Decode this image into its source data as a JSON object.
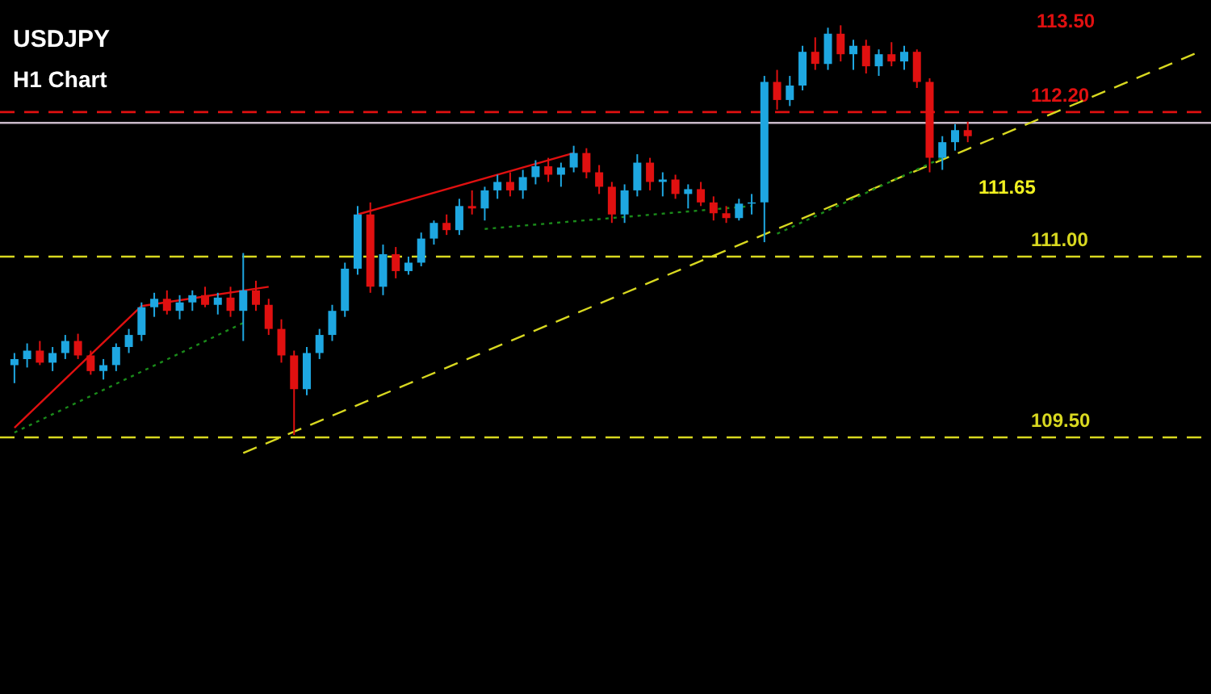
{
  "chart_data": {
    "type": "candlestick",
    "title": "USDJPY",
    "subtitle": "H1 Chart",
    "categories": [
      null,
      null,
      null,
      null,
      null,
      null,
      null,
      null,
      null,
      null,
      null,
      null,
      null,
      null,
      null,
      null,
      null,
      null,
      null,
      null,
      null,
      null,
      null,
      null,
      null,
      null,
      null,
      null,
      null,
      null,
      null,
      null,
      null,
      null,
      null,
      null,
      null,
      null,
      null,
      null,
      null,
      null,
      null,
      null,
      null,
      null,
      null,
      null,
      null,
      null,
      null,
      null,
      null,
      null,
      null,
      null,
      null,
      null,
      null,
      null,
      null,
      null,
      null,
      null,
      null,
      null,
      null,
      null,
      null,
      null,
      null,
      null,
      null,
      null,
      null,
      null,
      null,
      null,
      null,
      null,
      null,
      null,
      null,
      null,
      null,
      null,
      null,
      null,
      null,
      null,
      null,
      null,
      null,
      null
    ],
    "ohlc": [
      [
        110.1,
        110.2,
        109.95,
        110.15
      ],
      [
        110.15,
        110.28,
        110.08,
        110.22
      ],
      [
        110.22,
        110.3,
        110.1,
        110.12
      ],
      [
        110.12,
        110.25,
        110.05,
        110.2
      ],
      [
        110.2,
        110.35,
        110.15,
        110.3
      ],
      [
        110.3,
        110.36,
        110.15,
        110.18
      ],
      [
        110.18,
        110.22,
        110.02,
        110.05
      ],
      [
        110.05,
        110.15,
        109.98,
        110.1
      ],
      [
        110.1,
        110.28,
        110.05,
        110.25
      ],
      [
        110.25,
        110.4,
        110.2,
        110.35
      ],
      [
        110.35,
        110.62,
        110.3,
        110.58
      ],
      [
        110.58,
        110.7,
        110.5,
        110.65
      ],
      [
        110.65,
        110.72,
        110.52,
        110.55
      ],
      [
        110.55,
        110.68,
        110.48,
        110.62
      ],
      [
        110.62,
        110.72,
        110.55,
        110.68
      ],
      [
        110.68,
        110.75,
        110.58,
        110.6
      ],
      [
        110.6,
        110.7,
        110.52,
        110.66
      ],
      [
        110.66,
        110.75,
        110.5,
        110.55
      ],
      [
        110.55,
        111.03,
        110.3,
        110.72
      ],
      [
        110.72,
        110.8,
        110.55,
        110.6
      ],
      [
        110.6,
        110.65,
        110.35,
        110.4
      ],
      [
        110.4,
        110.48,
        110.12,
        110.18
      ],
      [
        110.18,
        110.22,
        109.52,
        109.9
      ],
      [
        109.9,
        110.25,
        109.85,
        110.2
      ],
      [
        110.2,
        110.4,
        110.15,
        110.35
      ],
      [
        110.35,
        110.6,
        110.3,
        110.55
      ],
      [
        110.55,
        110.95,
        110.5,
        110.9
      ],
      [
        110.9,
        111.42,
        110.85,
        111.35
      ],
      [
        111.35,
        111.45,
        110.7,
        110.75
      ],
      [
        110.75,
        111.1,
        110.68,
        111.02
      ],
      [
        111.02,
        111.08,
        110.82,
        110.88
      ],
      [
        110.88,
        111.0,
        110.85,
        110.95
      ],
      [
        110.95,
        111.2,
        110.92,
        111.15
      ],
      [
        111.15,
        111.3,
        111.1,
        111.28
      ],
      [
        111.28,
        111.35,
        111.18,
        111.22
      ],
      [
        111.22,
        111.48,
        111.18,
        111.42
      ],
      [
        111.42,
        111.55,
        111.35,
        111.4
      ],
      [
        111.4,
        111.58,
        111.3,
        111.55
      ],
      [
        111.55,
        111.68,
        111.48,
        111.62
      ],
      [
        111.62,
        111.7,
        111.5,
        111.55
      ],
      [
        111.55,
        111.72,
        111.48,
        111.66
      ],
      [
        111.66,
        111.8,
        111.6,
        111.75
      ],
      [
        111.75,
        111.82,
        111.62,
        111.68
      ],
      [
        111.68,
        111.78,
        111.58,
        111.74
      ],
      [
        111.74,
        111.92,
        111.7,
        111.86
      ],
      [
        111.86,
        111.9,
        111.65,
        111.7
      ],
      [
        111.7,
        111.76,
        111.52,
        111.58
      ],
      [
        111.58,
        111.62,
        111.28,
        111.35
      ],
      [
        111.35,
        111.6,
        111.28,
        111.55
      ],
      [
        111.55,
        111.85,
        111.5,
        111.78
      ],
      [
        111.78,
        111.82,
        111.55,
        111.62
      ],
      [
        111.62,
        111.7,
        111.5,
        111.64
      ],
      [
        111.64,
        111.68,
        111.48,
        111.52
      ],
      [
        111.52,
        111.6,
        111.4,
        111.56
      ],
      [
        111.56,
        111.62,
        111.42,
        111.45
      ],
      [
        111.45,
        111.5,
        111.3,
        111.36
      ],
      [
        111.36,
        111.42,
        111.28,
        111.32
      ],
      [
        111.32,
        111.48,
        111.3,
        111.44
      ],
      [
        111.44,
        111.52,
        111.35,
        111.45
      ],
      [
        111.45,
        112.5,
        111.12,
        112.45
      ],
      [
        112.45,
        112.55,
        112.22,
        112.3
      ],
      [
        112.3,
        112.5,
        112.25,
        112.42
      ],
      [
        112.42,
        112.75,
        112.38,
        112.7
      ],
      [
        112.7,
        112.82,
        112.55,
        112.6
      ],
      [
        112.6,
        112.9,
        112.55,
        112.85
      ],
      [
        112.85,
        112.92,
        112.62,
        112.68
      ],
      [
        112.68,
        112.8,
        112.55,
        112.75
      ],
      [
        112.75,
        112.8,
        112.52,
        112.58
      ],
      [
        112.58,
        112.72,
        112.5,
        112.68
      ],
      [
        112.68,
        112.78,
        112.58,
        112.62
      ],
      [
        112.62,
        112.75,
        112.55,
        112.7
      ],
      [
        112.7,
        112.72,
        112.4,
        112.45
      ],
      [
        112.45,
        112.48,
        111.7,
        111.82
      ],
      [
        111.82,
        112.0,
        111.72,
        111.95
      ],
      [
        111.95,
        112.1,
        111.88,
        112.05
      ],
      [
        112.05,
        112.12,
        111.95,
        112.0
      ],
      null,
      null,
      null,
      null,
      null,
      null,
      null,
      null,
      null,
      null,
      null,
      null,
      null,
      null,
      null,
      null,
      null,
      null
    ],
    "colors": [
      "#1ea7e1",
      "#1ea7e1",
      "#e01010",
      "#1ea7e1",
      "#1ea7e1",
      "#e01010",
      "#e01010",
      "#1ea7e1",
      "#1ea7e1",
      "#1ea7e1",
      "#1ea7e1",
      "#1ea7e1",
      "#e01010",
      "#1ea7e1",
      "#1ea7e1",
      "#e01010",
      "#1ea7e1",
      "#e01010",
      "#1ea7e1",
      "#e01010",
      "#e01010",
      "#e01010",
      "#e01010",
      "#1ea7e1",
      "#1ea7e1",
      "#1ea7e1",
      "#1ea7e1",
      "#1ea7e1",
      "#e01010",
      "#1ea7e1",
      "#e01010",
      "#1ea7e1",
      "#1ea7e1",
      "#1ea7e1",
      "#e01010",
      "#1ea7e1",
      "#e01010",
      "#1ea7e1",
      "#1ea7e1",
      "#e01010",
      "#1ea7e1",
      "#1ea7e1",
      "#e01010",
      "#1ea7e1",
      "#1ea7e1",
      "#e01010",
      "#e01010",
      "#e01010",
      "#1ea7e1",
      "#1ea7e1",
      "#e01010",
      "#1ea7e1",
      "#e01010",
      "#1ea7e1",
      "#e01010",
      "#e01010",
      "#e01010",
      "#1ea7e1",
      "#1ea7e1",
      "#1ea7e1",
      "#e01010",
      "#1ea7e1",
      "#1ea7e1",
      "#e01010",
      "#1ea7e1",
      "#e01010",
      "#1ea7e1",
      "#e01010",
      "#1ea7e1",
      "#e01010",
      "#1ea7e1",
      "#e01010",
      "#e01010",
      "#1ea7e1",
      "#1ea7e1",
      "#e01010",
      null,
      null,
      null,
      null,
      null,
      null,
      null,
      null,
      null,
      null,
      null,
      null,
      null,
      null,
      null,
      null,
      null,
      null
    ],
    "series": [
      {
        "type": "line",
        "color": "#d8d820",
        "line_style": "dashed",
        "values": [
          null,
          null,
          null,
          null,
          null,
          null,
          null,
          null,
          null,
          null,
          null,
          null,
          null,
          null,
          null,
          null,
          null,
          null,
          109.37,
          null,
          null,
          null,
          null,
          null,
          null,
          null,
          null,
          null,
          null,
          null,
          null,
          null,
          null,
          null,
          null,
          null,
          null,
          null,
          null,
          null,
          null,
          null,
          null,
          null,
          null,
          null,
          null,
          null,
          null,
          null,
          null,
          null,
          null,
          null,
          null,
          null,
          null,
          null,
          null,
          null,
          null,
          null,
          null,
          null,
          null,
          null,
          null,
          null,
          null,
          null,
          null,
          null,
          null,
          null,
          null,
          null,
          null,
          null,
          null,
          null,
          null,
          null,
          null,
          null,
          null,
          null,
          null,
          null,
          null,
          null,
          null,
          null,
          null,
          112.69
        ]
      },
      {
        "type": "line",
        "color": "#e01010",
        "line_style": "solid",
        "values": [
          109.58,
          null,
          null,
          null,
          null,
          null,
          null,
          null,
          null,
          null,
          110.59,
          null,
          null,
          null,
          null,
          null,
          null,
          null,
          null,
          null,
          110.75,
          null,
          null,
          null,
          null,
          null,
          null,
          null,
          null,
          null,
          null,
          null,
          null,
          null,
          null,
          null,
          null,
          null,
          null,
          null,
          null,
          null,
          null,
          null,
          null,
          null,
          null,
          null,
          null,
          null,
          null,
          null,
          null,
          null,
          null,
          null,
          null,
          null,
          null,
          null,
          null,
          null,
          null,
          null,
          null,
          null,
          null,
          null,
          null,
          null,
          null,
          null,
          null,
          null,
          null,
          null,
          null,
          null,
          null,
          null,
          null,
          null,
          null,
          null,
          null,
          null,
          null,
          null,
          null,
          null,
          null,
          null,
          null,
          null
        ]
      },
      {
        "type": "line",
        "color": "#e01010",
        "line_style": "solid",
        "values": [
          null,
          null,
          null,
          null,
          null,
          null,
          null,
          null,
          null,
          null,
          null,
          null,
          null,
          null,
          null,
          null,
          null,
          null,
          null,
          null,
          null,
          null,
          null,
          null,
          null,
          null,
          null,
          111.35,
          null,
          null,
          null,
          null,
          null,
          null,
          null,
          null,
          null,
          null,
          null,
          null,
          null,
          null,
          null,
          null,
          111.86,
          null,
          null,
          null,
          null,
          null,
          null,
          null,
          null,
          null,
          null,
          null,
          null,
          null,
          null,
          null,
          null,
          null,
          null,
          null,
          null,
          null,
          null,
          null,
          null,
          null,
          null,
          null,
          null,
          null,
          null,
          null,
          null,
          null,
          null,
          null,
          null,
          null,
          null,
          null,
          null,
          null,
          null,
          null,
          null,
          null,
          null,
          null,
          null,
          null
        ]
      },
      {
        "type": "line",
        "color": "#1a8a1a",
        "line_style": "dotted",
        "values": [
          109.54,
          null,
          null,
          null,
          null,
          null,
          null,
          null,
          null,
          null,
          null,
          null,
          null,
          null,
          null,
          null,
          null,
          null,
          110.45,
          null,
          null,
          null,
          null,
          null,
          null,
          null,
          null,
          null,
          null,
          null,
          null,
          null,
          null,
          null,
          null,
          null,
          null,
          null,
          null,
          null,
          null,
          null,
          null,
          null,
          null,
          null,
          null,
          null,
          null,
          null,
          null,
          null,
          null,
          null,
          null,
          null,
          null,
          null,
          null,
          null,
          null,
          null,
          null,
          null,
          null,
          null,
          null,
          null,
          null,
          null,
          null,
          null,
          null,
          null,
          null,
          null,
          null,
          null,
          null,
          null,
          null,
          null,
          null,
          null,
          null,
          null,
          null,
          null,
          null,
          null,
          null,
          null,
          null,
          null
        ]
      },
      {
        "type": "line",
        "color": "#1a8a1a",
        "line_style": "dotted",
        "values": [
          null,
          null,
          null,
          null,
          null,
          null,
          null,
          null,
          null,
          null,
          null,
          null,
          null,
          null,
          null,
          null,
          null,
          null,
          null,
          null,
          null,
          null,
          null,
          null,
          null,
          null,
          null,
          null,
          null,
          null,
          null,
          null,
          null,
          null,
          null,
          null,
          null,
          111.23,
          null,
          null,
          null,
          null,
          null,
          null,
          null,
          null,
          null,
          null,
          null,
          null,
          null,
          null,
          null,
          null,
          null,
          null,
          null,
          null,
          111.42,
          null,
          null,
          null,
          null,
          null,
          null,
          null,
          null,
          null,
          null,
          null,
          null,
          null,
          null,
          null,
          null,
          null,
          null,
          null,
          null,
          null,
          null,
          null,
          null,
          null,
          null,
          null,
          null,
          null,
          null,
          null,
          null,
          null,
          null,
          null
        ]
      },
      {
        "type": "line",
        "color": "#1a8a1a",
        "line_style": "dotted",
        "values": [
          null,
          null,
          null,
          null,
          null,
          null,
          null,
          null,
          null,
          null,
          null,
          null,
          null,
          null,
          null,
          null,
          null,
          null,
          null,
          null,
          null,
          null,
          null,
          null,
          null,
          null,
          null,
          null,
          null,
          null,
          null,
          null,
          null,
          null,
          null,
          null,
          null,
          null,
          null,
          null,
          null,
          null,
          null,
          null,
          null,
          null,
          null,
          null,
          null,
          null,
          null,
          null,
          null,
          null,
          null,
          null,
          null,
          null,
          null,
          null,
          111.19,
          null,
          null,
          null,
          null,
          null,
          null,
          null,
          null,
          null,
          null,
          null,
          null,
          111.82,
          null,
          null,
          null,
          null,
          null,
          null,
          null,
          null,
          null,
          null,
          null,
          null,
          null,
          null,
          null,
          null,
          null,
          null,
          null,
          null
        ]
      }
    ],
    "ref_lines": [
      {
        "axis": "y",
        "value": 112.2,
        "color": "#e01010",
        "line_style": "dashed"
      },
      {
        "axis": "y",
        "value": 112.11,
        "color": "#c8b8c8",
        "line_style": "solid"
      },
      {
        "axis": "y",
        "value": 111.0,
        "color": "#d8d820",
        "line_style": "dashed"
      },
      {
        "axis": "y",
        "value": 109.5,
        "color": "#d8d820",
        "line_style": "dashed"
      }
    ],
    "annotations": [
      "113.50",
      "111.65"
    ],
    "ylim": [
      107.37,
      113.13
    ],
    "yticks": [
      {
        "value": 109.5,
        "label": "109.50"
      },
      {
        "value": 111.0,
        "label": "111.00"
      },
      {
        "value": 112.2,
        "label": "112.20"
      }
    ],
    "tick_labels": "y",
    "grid": false,
    "marker": "none"
  }
}
